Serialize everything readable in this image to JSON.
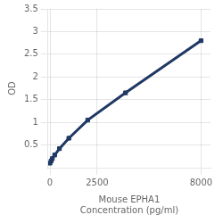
{
  "chart_data": {
    "type": "line",
    "x": [
      0,
      62.5,
      125,
      250,
      500,
      1000,
      2000,
      4000,
      8000
    ],
    "series": [
      {
        "color": "#1f3864",
        "marker": "square",
        "values": [
          0.1,
          0.15,
          0.2,
          0.28,
          0.42,
          0.65,
          1.05,
          1.65,
          2.8
        ]
      }
    ],
    "xlabel": "Mouse EPHA1\nConcentration (pg/ml)",
    "ylabel": "OD",
    "xlim": [
      -100,
      8500
    ],
    "ylim": [
      0,
      3.5
    ],
    "xticks": [
      0,
      2500,
      8000
    ],
    "yticks": [
      0.5,
      1,
      1.5,
      2,
      2.5,
      3,
      3.5
    ],
    "grid": true
  }
}
